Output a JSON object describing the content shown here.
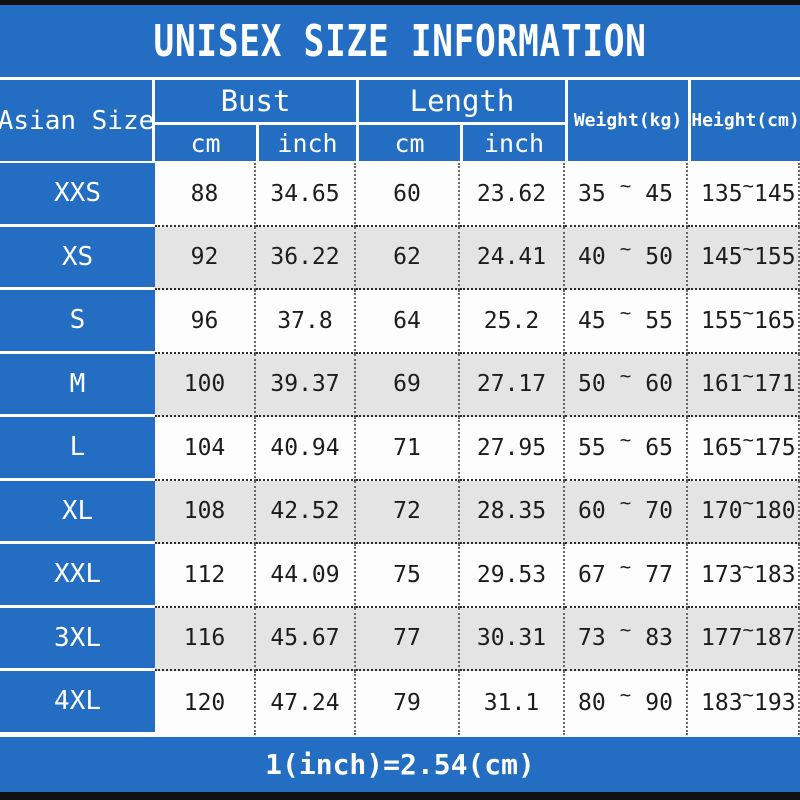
{
  "title": "UNISEX SIZE INFORMATION",
  "footer_note": "1(inch)=2.54(cm)",
  "colors": {
    "blue": "#236ec3",
    "alt_row": "#e4e4e4",
    "white_row": "#fdfdfd",
    "frame_bar": "#111111",
    "header_text": "#ffffff",
    "data_text": "#1c1c1c"
  },
  "table": {
    "header": {
      "row_label": "Asian Size",
      "bust": "Bust",
      "length": "Length",
      "weight": "Weight(kg)",
      "height": "Height(cm)",
      "cm": "cm",
      "inch": "inch"
    },
    "range_separator": "~",
    "rows": [
      {
        "size": "XXS",
        "bust_cm": "88",
        "bust_inch": "34.65",
        "length_cm": "60",
        "length_inch": "23.62",
        "weight_min": "35",
        "weight_max": "45",
        "height_min": "135",
        "height_max": "145"
      },
      {
        "size": "XS",
        "bust_cm": "92",
        "bust_inch": "36.22",
        "length_cm": "62",
        "length_inch": "24.41",
        "weight_min": "40",
        "weight_max": "50",
        "height_min": "145",
        "height_max": "155"
      },
      {
        "size": "S",
        "bust_cm": "96",
        "bust_inch": "37.8",
        "length_cm": "64",
        "length_inch": "25.2",
        "weight_min": "45",
        "weight_max": "55",
        "height_min": "155",
        "height_max": "165"
      },
      {
        "size": "M",
        "bust_cm": "100",
        "bust_inch": "39.37",
        "length_cm": "69",
        "length_inch": "27.17",
        "weight_min": "50",
        "weight_max": "60",
        "height_min": "161",
        "height_max": "171"
      },
      {
        "size": "L",
        "bust_cm": "104",
        "bust_inch": "40.94",
        "length_cm": "71",
        "length_inch": "27.95",
        "weight_min": "55",
        "weight_max": "65",
        "height_min": "165",
        "height_max": "175"
      },
      {
        "size": "XL",
        "bust_cm": "108",
        "bust_inch": "42.52",
        "length_cm": "72",
        "length_inch": "28.35",
        "weight_min": "60",
        "weight_max": "70",
        "height_min": "170",
        "height_max": "180"
      },
      {
        "size": "XXL",
        "bust_cm": "112",
        "bust_inch": "44.09",
        "length_cm": "75",
        "length_inch": "29.53",
        "weight_min": "67",
        "weight_max": "77",
        "height_min": "173",
        "height_max": "183"
      },
      {
        "size": "3XL",
        "bust_cm": "116",
        "bust_inch": "45.67",
        "length_cm": "77",
        "length_inch": "30.31",
        "weight_min": "73",
        "weight_max": "83",
        "height_min": "177",
        "height_max": "187"
      },
      {
        "size": "4XL",
        "bust_cm": "120",
        "bust_inch": "47.24",
        "length_cm": "79",
        "length_inch": "31.1",
        "weight_min": "80",
        "weight_max": "90",
        "height_min": "183",
        "height_max": "193"
      }
    ]
  },
  "chart_data": {
    "type": "table",
    "title": "UNISEX SIZE INFORMATION",
    "columns": [
      "Asian Size",
      "Bust cm",
      "Bust inch",
      "Length cm",
      "Length inch",
      "Weight(kg)",
      "Height(cm)"
    ],
    "rows": [
      [
        "XXS",
        88,
        34.65,
        60,
        23.62,
        "35~45",
        "135~145"
      ],
      [
        "XS",
        92,
        36.22,
        62,
        24.41,
        "40~50",
        "145~155"
      ],
      [
        "S",
        96,
        37.8,
        64,
        25.2,
        "45~55",
        "155~165"
      ],
      [
        "M",
        100,
        39.37,
        69,
        27.17,
        "50~60",
        "161~171"
      ],
      [
        "L",
        104,
        40.94,
        71,
        27.95,
        "55~65",
        "165~175"
      ],
      [
        "XL",
        108,
        42.52,
        72,
        28.35,
        "60~70",
        "170~180"
      ],
      [
        "XXL",
        112,
        44.09,
        75,
        29.53,
        "67~77",
        "173~183"
      ],
      [
        "3XL",
        116,
        45.67,
        77,
        30.31,
        "73~83",
        "177~187"
      ],
      [
        "4XL",
        120,
        47.24,
        79,
        31.1,
        "80~90",
        "183~193"
      ]
    ],
    "footnote": "1(inch)=2.54(cm)"
  }
}
